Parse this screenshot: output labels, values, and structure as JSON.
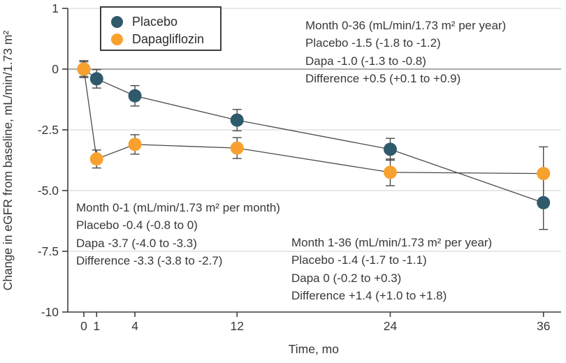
{
  "y_axis": {
    "label": "Change in eGFR from baseline, mL/min/1.73 m²",
    "tick_labels": [
      "1",
      "0",
      "-2.5",
      "-5.0",
      "-7.5",
      "-10"
    ]
  },
  "x_axis": {
    "label": "Time, mo",
    "tick_labels": [
      "0",
      "1",
      "4",
      "12",
      "24",
      "36"
    ]
  },
  "legend": {
    "items": [
      {
        "label": "Placebo",
        "color": "#2E5A6B",
        "marker": "circle-icon"
      },
      {
        "label": "Dapagliflozin",
        "color": "#F8A12E",
        "marker": "circle-icon"
      }
    ]
  },
  "annotations": {
    "month_0_36": {
      "lines": [
        "Month 0-36 (mL/min/1.73 m² per year)",
        "Placebo -1.5 (-1.8 to -1.2)",
        "Dapa -1.0 (-1.3 to -0.8)",
        "Difference +0.5 (+0.1 to +0.9)"
      ]
    },
    "month_0_1": {
      "lines": [
        "Month 0-1 (mL/min/1.73 m² per month)",
        "Placebo -0.4 (-0.8 to 0)",
        "Dapa -3.7 (-4.0 to -3.3)",
        "Difference -3.3 (-3.8 to -2.7)"
      ]
    },
    "month_1_36": {
      "lines": [
        "Month 1-36 (mL/min/1.73 m² per year)",
        "Placebo -1.4 (-1.7 to -1.1)",
        "Dapa 0 (-0.2 to +0.3)",
        "Difference +1.4 (+1.0 to +1.8)"
      ]
    }
  },
  "chart_data": {
    "type": "line",
    "x": [
      0,
      1,
      4,
      12,
      24,
      36
    ],
    "series": [
      {
        "name": "Placebo",
        "color": "#2E5A6B",
        "values": [
          0,
          -0.4,
          -1.1,
          -2.1,
          -3.3,
          -5.5
        ],
        "ci_half_width": [
          0.3,
          0.38,
          0.42,
          0.44,
          0.45,
          1.1
        ]
      },
      {
        "name": "Dapagliflozin",
        "color": "#F8A12E",
        "values": [
          0,
          -3.7,
          -3.1,
          -3.25,
          -4.25,
          -4.3
        ],
        "ci_half_width": [
          0.35,
          0.37,
          0.4,
          0.43,
          0.55,
          1.1
        ]
      }
    ],
    "title": "",
    "xlabel": "Time, mo",
    "ylabel": "Change in eGFR from baseline, mL/min/1.73 m²",
    "xticks": [
      0,
      1,
      4,
      12,
      24,
      36
    ],
    "yticks": [
      1,
      0,
      -2.5,
      -5,
      -7.5,
      -10
    ],
    "xlim": [
      0,
      36
    ],
    "ylim": [
      -10,
      1
    ],
    "grid": "horizontal",
    "legend_position": "top-left",
    "error_bars": true,
    "colors": {
      "line": "#4a4a4a",
      "axis": "#3d3d3d",
      "gridline": "#d9d9d9",
      "zero_line": "#8d8d8d",
      "text": "#383838"
    }
  }
}
